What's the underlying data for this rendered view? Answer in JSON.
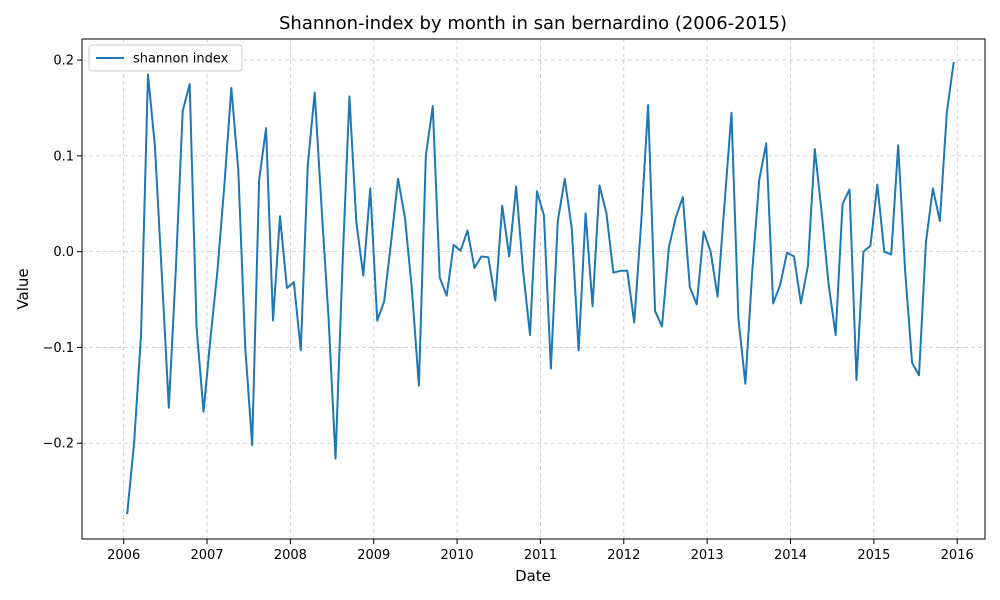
{
  "chart_data": {
    "type": "line",
    "title": "Shannon-index by month in san bernardino (2006-2015)",
    "xlabel": "Date",
    "ylabel": "Value",
    "xlim": [
      "2005-07",
      "2016-05"
    ],
    "ylim": [
      -0.3,
      0.222
    ],
    "x_ticks": [
      "2006",
      "2007",
      "2008",
      "2009",
      "2010",
      "2011",
      "2012",
      "2013",
      "2014",
      "2015",
      "2016"
    ],
    "y_ticks": [
      -0.2,
      -0.1,
      0.0,
      0.1,
      0.2
    ],
    "y_tick_labels": [
      "−0.2",
      "−0.1",
      "0.0",
      "0.1",
      "0.2"
    ],
    "grid": true,
    "legend": "top-left",
    "series": [
      {
        "name": "shannon index",
        "color": "#1f77b4",
        "x": [
          "2006-01",
          "2006-02",
          "2006-03",
          "2006-04",
          "2006-05",
          "2006-06",
          "2006-07",
          "2006-08",
          "2006-09",
          "2006-10",
          "2006-11",
          "2006-12",
          "2007-01",
          "2007-02",
          "2007-03",
          "2007-04",
          "2007-05",
          "2007-06",
          "2007-07",
          "2007-08",
          "2007-09",
          "2007-10",
          "2007-11",
          "2007-12",
          "2008-01",
          "2008-02",
          "2008-03",
          "2008-04",
          "2008-05",
          "2008-06",
          "2008-07",
          "2008-08",
          "2008-09",
          "2008-10",
          "2008-11",
          "2008-12",
          "2009-01",
          "2009-02",
          "2009-03",
          "2009-04",
          "2009-05",
          "2009-06",
          "2009-07",
          "2009-08",
          "2009-09",
          "2009-10",
          "2009-11",
          "2009-12",
          "2010-01",
          "2010-02",
          "2010-03",
          "2010-04",
          "2010-05",
          "2010-06",
          "2010-07",
          "2010-08",
          "2010-09",
          "2010-10",
          "2010-11",
          "2010-12",
          "2011-01",
          "2011-02",
          "2011-03",
          "2011-04",
          "2011-05",
          "2011-06",
          "2011-07",
          "2011-08",
          "2011-09",
          "2011-10",
          "2011-11",
          "2011-12",
          "2012-01",
          "2012-02",
          "2012-03",
          "2012-04",
          "2012-05",
          "2012-06",
          "2012-07",
          "2012-08",
          "2012-09",
          "2012-10",
          "2012-11",
          "2012-12",
          "2013-01",
          "2013-02",
          "2013-03",
          "2013-04",
          "2013-05",
          "2013-06",
          "2013-07",
          "2013-08",
          "2013-09",
          "2013-10",
          "2013-11",
          "2013-12",
          "2014-01",
          "2014-02",
          "2014-03",
          "2014-04",
          "2014-05",
          "2014-06",
          "2014-07",
          "2014-08",
          "2014-09",
          "2014-10",
          "2014-11",
          "2014-12",
          "2015-01",
          "2015-02",
          "2015-03",
          "2015-04",
          "2015-05",
          "2015-06",
          "2015-07",
          "2015-08",
          "2015-09",
          "2015-10",
          "2015-11",
          "2015-12"
        ],
        "values": [
          -0.274,
          -0.2,
          -0.087,
          0.185,
          0.11,
          -0.025,
          -0.163,
          -0.02,
          0.147,
          0.175,
          -0.08,
          -0.167,
          -0.09,
          -0.02,
          0.07,
          0.171,
          0.085,
          -0.1,
          -0.202,
          0.075,
          0.129,
          -0.072,
          0.037,
          -0.038,
          -0.032,
          -0.103,
          0.09,
          0.166,
          0.045,
          -0.07,
          -0.216,
          -0.015,
          0.162,
          0.03,
          -0.025,
          0.066,
          -0.072,
          -0.052,
          0.01,
          0.076,
          0.035,
          -0.04,
          -0.14,
          0.1,
          0.152,
          -0.027,
          -0.046,
          0.007,
          0.001,
          0.022,
          -0.017,
          -0.005,
          -0.006,
          -0.051,
          0.048,
          -0.005,
          0.068,
          -0.02,
          -0.087,
          0.063,
          0.038,
          -0.122,
          0.032,
          0.076,
          0.025,
          -0.103,
          0.04,
          -0.057,
          0.069,
          0.04,
          -0.022,
          -0.02,
          -0.02,
          -0.074,
          0.03,
          0.153,
          -0.062,
          -0.078,
          0.005,
          0.036,
          0.057,
          -0.037,
          -0.055,
          0.021,
          0.0,
          -0.047,
          0.05,
          0.145,
          -0.07,
          -0.138,
          -0.02,
          0.075,
          0.113,
          -0.054,
          -0.035,
          -0.001,
          -0.005,
          -0.054,
          -0.015,
          0.107,
          0.04,
          -0.035,
          -0.087,
          0.05,
          0.065,
          -0.134,
          0.0,
          0.006,
          0.07,
          0.0,
          -0.003,
          0.111,
          -0.02,
          -0.116,
          -0.129,
          0.01,
          0.066,
          0.032,
          0.145,
          0.198
        ]
      }
    ]
  }
}
